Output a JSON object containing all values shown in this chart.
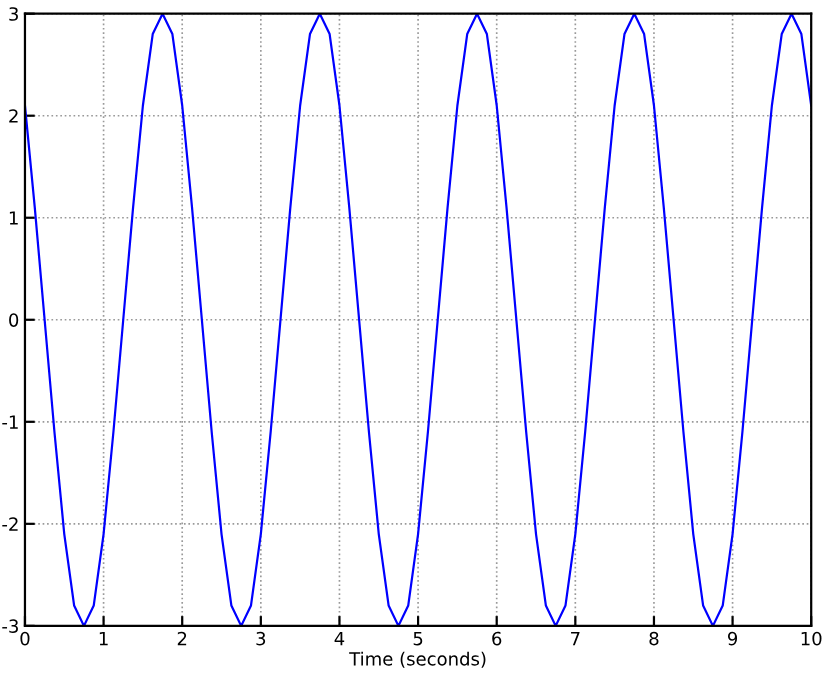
{
  "chart_data": {
    "type": "line",
    "xlabel": "Time (seconds)",
    "x": [
      0,
      0.125,
      0.25,
      0.375,
      0.5,
      0.625,
      0.75,
      0.875,
      1,
      1.125,
      1.25,
      1.375,
      1.5,
      1.625,
      1.75,
      1.875,
      2,
      2.125,
      2.25,
      2.375,
      2.5,
      2.625,
      2.75,
      2.875,
      3,
      3.125,
      3.25,
      3.375,
      3.5,
      3.625,
      3.75,
      3.875,
      4,
      4.125,
      4.25,
      4.375,
      4.5,
      4.625,
      4.75,
      4.875,
      5,
      5.125,
      5.25,
      5.375,
      5.5,
      5.625,
      5.75,
      5.875,
      6,
      6.125,
      6.25,
      6.375,
      6.5,
      6.625,
      6.75,
      6.875,
      7,
      7.125,
      7.25,
      7.375,
      7.5,
      7.625,
      7.75,
      7.875,
      8,
      8.125,
      8.25,
      8.375,
      8.5,
      8.625,
      8.75,
      8.875,
      9,
      9.125,
      9.25,
      9.375,
      9.5,
      9.625,
      9.75,
      9.875,
      10
    ],
    "series": [
      {
        "color": "#0000ff",
        "values": [
          2.1,
          1.1,
          0,
          -1.1,
          -2.1,
          -2.8,
          -3,
          -2.8,
          -2.1,
          -1.1,
          0,
          1.1,
          2.1,
          2.8,
          3,
          2.8,
          2.1,
          1.1,
          0,
          -1.1,
          -2.1,
          -2.8,
          -3,
          -2.8,
          -2.1,
          -1.1,
          0,
          1.1,
          2.1,
          2.8,
          3,
          2.8,
          2.1,
          1.1,
          0,
          -1.1,
          -2.1,
          -2.8,
          -3,
          -2.8,
          -2.1,
          -1.1,
          0,
          1.1,
          2.1,
          2.8,
          3,
          2.8,
          2.1,
          1.1,
          0,
          -1.1,
          -2.1,
          -2.8,
          -3,
          -2.8,
          -2.1,
          -1.1,
          0,
          1.1,
          2.1,
          2.8,
          3,
          2.8,
          2.1,
          1.1,
          0,
          -1.1,
          -2.1,
          -2.8,
          -3,
          -2.8,
          -2.1,
          -1.1,
          0,
          1.1,
          2.1,
          2.8,
          3,
          2.8,
          2.1
        ]
      }
    ],
    "xlim": [
      0,
      10
    ],
    "ylim": [
      -3,
      3
    ],
    "xticks": [
      0,
      1,
      2,
      3,
      4,
      5,
      6,
      7,
      8,
      9,
      10
    ],
    "yticks": [
      -3,
      -2,
      -1,
      0,
      1,
      2,
      3
    ],
    "grid": true,
    "line_style": "solid"
  }
}
